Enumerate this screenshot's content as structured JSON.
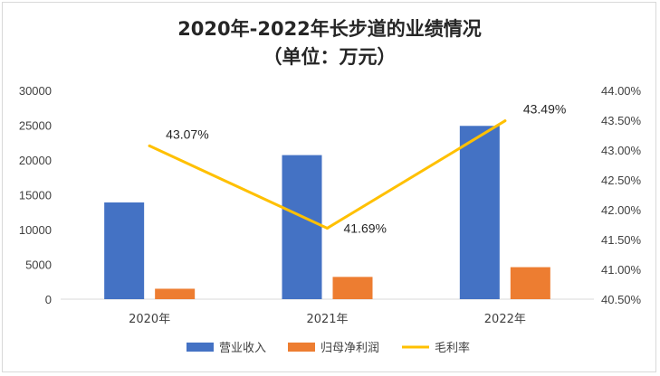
{
  "chart_data": {
    "type": "bar",
    "title": "2020年-2022年长步道的业绩情况",
    "subtitle": "（单位：万元）",
    "categories": [
      "2020年",
      "2021年",
      "2022年"
    ],
    "series": [
      {
        "name": "营业收入",
        "kind": "bar",
        "axis": "left",
        "color": "#4472C4",
        "values": [
          13900,
          20700,
          24900
        ]
      },
      {
        "name": "归母净利润",
        "kind": "bar",
        "axis": "left",
        "color": "#ED7D31",
        "values": [
          1500,
          3200,
          4600
        ]
      },
      {
        "name": "毛利率",
        "kind": "line",
        "axis": "right",
        "color": "#FFC000",
        "values": [
          43.07,
          41.69,
          43.49
        ],
        "labels": [
          "43.07%",
          "41.69%",
          "43.49%"
        ]
      }
    ],
    "ylim": [
      0,
      30000
    ],
    "yticks": [
      "0",
      "5000",
      "10000",
      "15000",
      "20000",
      "25000",
      "30000"
    ],
    "y2lim": [
      40.5,
      44.0
    ],
    "y2ticks": [
      "40.50%",
      "41.00%",
      "41.50%",
      "42.00%",
      "42.50%",
      "43.00%",
      "43.50%",
      "44.00%"
    ],
    "legend_position": "bottom",
    "grid": false
  }
}
